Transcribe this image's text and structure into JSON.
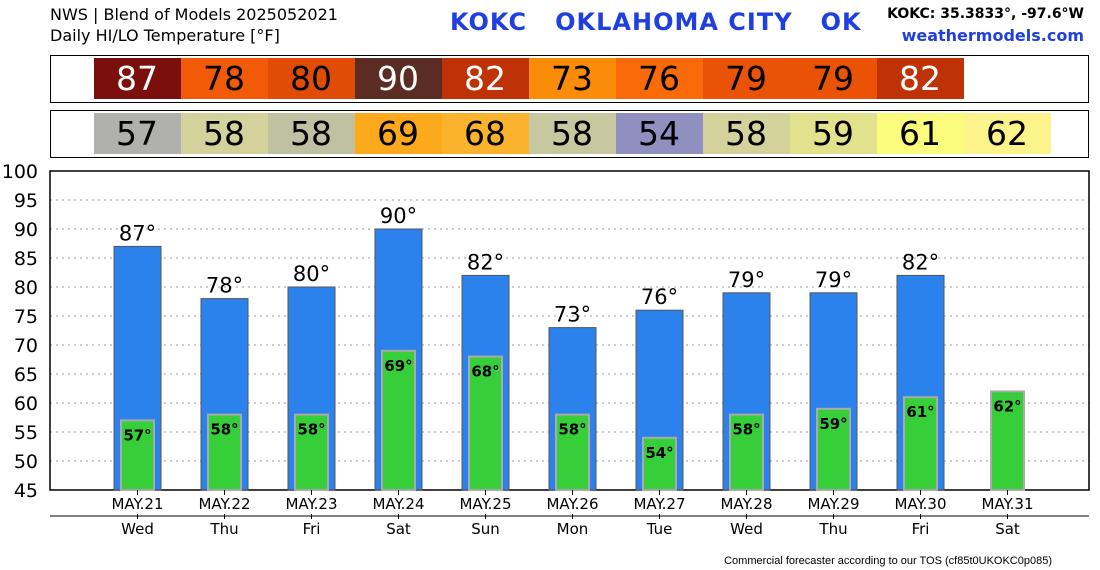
{
  "header": {
    "line1": "NWS | Blend of Models 2025052021",
    "line2": "Daily HI/LO Temperature [°F]",
    "station": "KOKC   OKLAHOMA CITY   OK",
    "coords": "KOKC: 35.3833°, -97.6°W",
    "site": "weathermodels.com"
  },
  "footer": "Commercial forecaster according to our TOS (cf85t0UKOKC0p085)",
  "hi_band": [
    {
      "text": "87",
      "bg": "#7a0f0c",
      "fg": "#ffffff"
    },
    {
      "text": "78",
      "bg": "#f25a08",
      "fg": "#000000"
    },
    {
      "text": "80",
      "bg": "#e04c06",
      "fg": "#000000"
    },
    {
      "text": "90",
      "bg": "#5a2c24",
      "fg": "#ffffff"
    },
    {
      "text": "82",
      "bg": "#be3206",
      "fg": "#ffffff"
    },
    {
      "text": "73",
      "bg": "#fb8c08",
      "fg": "#000000"
    },
    {
      "text": "76",
      "bg": "#fa6a08",
      "fg": "#000000"
    },
    {
      "text": "79",
      "bg": "#ea5206",
      "fg": "#000000"
    },
    {
      "text": "79",
      "bg": "#ea5206",
      "fg": "#000000"
    },
    {
      "text": "82",
      "bg": "#be3206",
      "fg": "#ffffff"
    }
  ],
  "lo_band": [
    {
      "text": "57",
      "bg": "#b0b0ae",
      "fg": "#000000"
    },
    {
      "text": "58",
      "bg": "#d2d29a",
      "fg": "#000000"
    },
    {
      "text": "58",
      "bg": "#c0c0a2",
      "fg": "#000000"
    },
    {
      "text": "69",
      "bg": "#fcaa1c",
      "fg": "#000000"
    },
    {
      "text": "68",
      "bg": "#fbb22c",
      "fg": "#000000"
    },
    {
      "text": "58",
      "bg": "#c8c8a0",
      "fg": "#000000"
    },
    {
      "text": "54",
      "bg": "#9090c0",
      "fg": "#000000"
    },
    {
      "text": "58",
      "bg": "#d2d29a",
      "fg": "#000000"
    },
    {
      "text": "59",
      "bg": "#e2e28c",
      "fg": "#000000"
    },
    {
      "text": "61",
      "bg": "#fcfc7c",
      "fg": "#000000"
    },
    {
      "text": "62",
      "bg": "#fcf48a",
      "fg": "#000000"
    }
  ],
  "chart_data": {
    "type": "bar",
    "categories": [
      "MAY.21",
      "MAY.22",
      "MAY.23",
      "MAY.24",
      "MAY.25",
      "MAY.26",
      "MAY.27",
      "MAY.28",
      "MAY.29",
      "MAY.30",
      "MAY.31"
    ],
    "days": [
      "Wed",
      "Thu",
      "Fri",
      "Sat",
      "Sun",
      "Mon",
      "Tue",
      "Wed",
      "Thu",
      "Fri",
      "Sat"
    ],
    "series": [
      {
        "values": [
          87,
          78,
          80,
          90,
          82,
          73,
          76,
          79,
          79,
          82,
          null
        ],
        "labels": [
          "87°",
          "78°",
          "80°",
          "90°",
          "82°",
          "73°",
          "76°",
          "79°",
          "79°",
          "82°",
          ""
        ],
        "color": "#2b82ec"
      },
      {
        "values": [
          57,
          58,
          58,
          69,
          68,
          58,
          54,
          58,
          59,
          61,
          62
        ],
        "labels": [
          "57°",
          "58°",
          "58°",
          "69°",
          "68°",
          "58°",
          "54°",
          "58°",
          "59°",
          "61°",
          "62°"
        ],
        "color": "#36cf3a"
      }
    ],
    "yticks": [
      "100",
      "95",
      "90",
      "85",
      "80",
      "75",
      "70",
      "65",
      "60",
      "55",
      "50",
      "45"
    ],
    "ylim": [
      45,
      100
    ],
    "grid": true
  }
}
